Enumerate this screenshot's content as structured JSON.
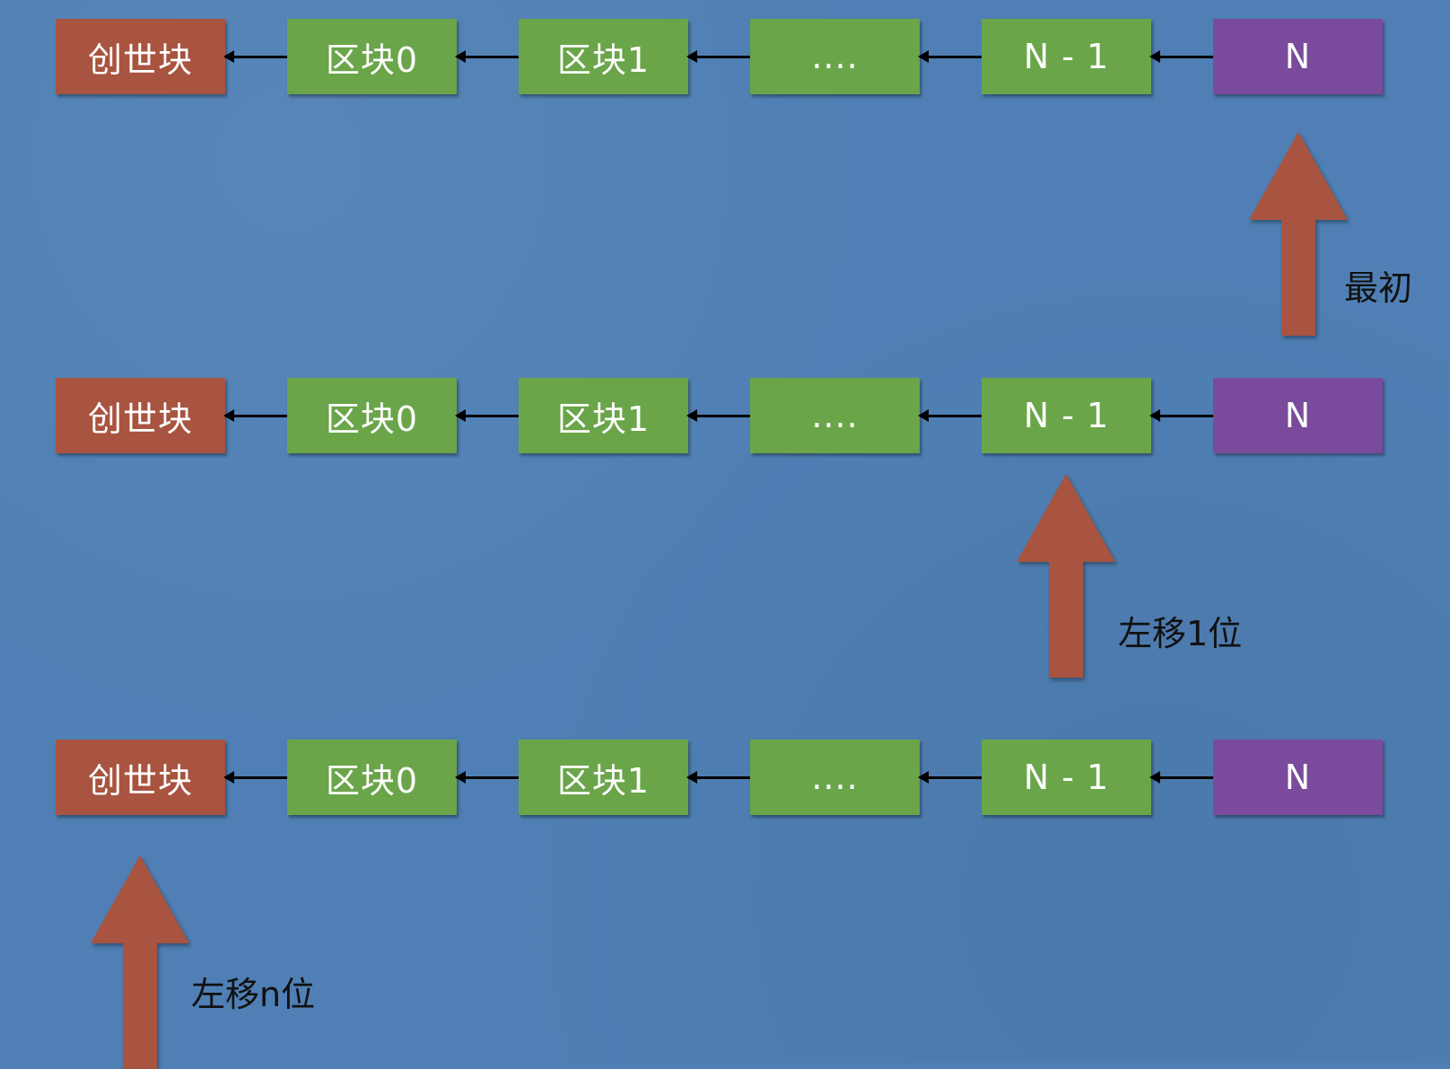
{
  "colors": {
    "background": "#4f7fb4",
    "genesis": "#a85440",
    "block": "#6aa54a",
    "tip": "#7a4a9c",
    "arrow": "#a85440",
    "link": "#000000",
    "caption": "#111111"
  },
  "chains": [
    {
      "blocks": [
        "创世块",
        "区块0",
        "区块1",
        "....",
        "N - 1",
        "N"
      ]
    },
    {
      "blocks": [
        "创世块",
        "区块0",
        "区块1",
        "....",
        "N - 1",
        "N"
      ]
    },
    {
      "blocks": [
        "创世块",
        "区块0",
        "区块1",
        "....",
        "N - 1",
        "N"
      ]
    }
  ],
  "pointers": [
    {
      "label": "最初",
      "target": "N"
    },
    {
      "label": "左移1位",
      "target": "N - 1"
    },
    {
      "label": "左移n位",
      "target": "创世块"
    }
  ]
}
